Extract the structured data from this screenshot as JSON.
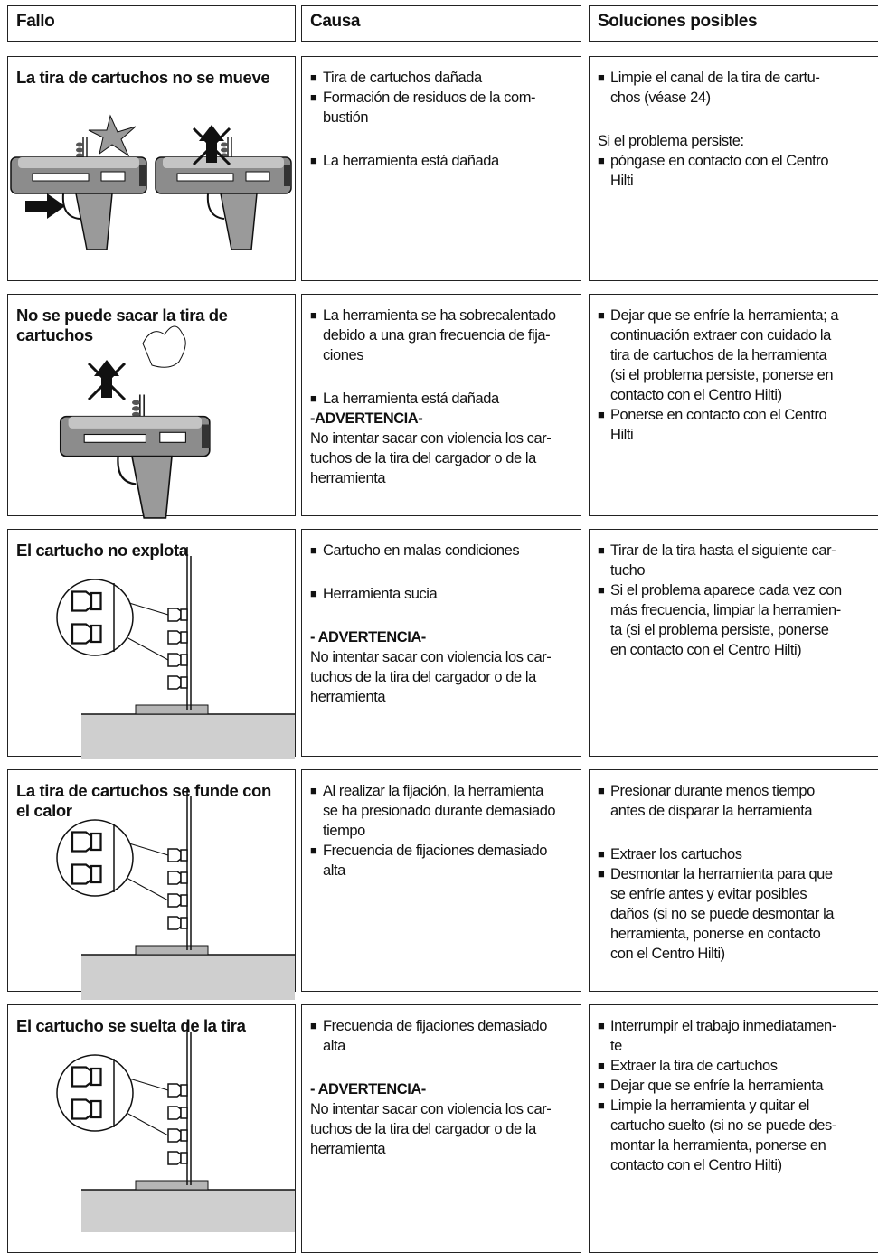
{
  "header": {
    "columns": [
      "Fallo",
      "Causa",
      "Soluciones posibles"
    ]
  },
  "rows": [
    {
      "fault": [
        "La tira de cartuchos no se mueve"
      ],
      "cause": [
        [
          {
            "marker": "■",
            "lines": [
              "Tira de cartuchos dañada"
            ]
          },
          {
            "marker": "■",
            "lines": [
              "Formación de residuos de la com-",
              "bustión"
            ]
          }
        ],
        [
          {
            "marker": "■",
            "lines": [
              "La herramienta está dañada"
            ]
          }
        ]
      ],
      "solutions": [
        [
          {
            "marker": "■",
            "lines": [
              "Limpie el canal de la tira de cartu-",
              "chos (véase 24)"
            ]
          }
        ],
        [
          {
            "lines": [
              "Si el problema persiste:"
            ]
          },
          {
            "marker": "■",
            "lines": [
              "póngase en contacto con el Centro",
              "Hilti"
            ]
          }
        ]
      ]
    },
    {
      "fault": [
        "No se puede sacar la tira de",
        "cartuchos"
      ],
      "cause": [
        [
          {
            "marker": "■",
            "lines": [
              "La herramienta se ha sobrecalentado",
              "debido a una gran frecuencia de fija-",
              "ciones"
            ]
          }
        ],
        [
          {
            "marker": "■",
            "lines": [
              "La herramienta está dañada"
            ]
          },
          {
            "heading": "-ADVERTENCIA-"
          },
          {
            "lines": [
              "No intentar sacar con violencia los car-",
              "tuchos de la tira del cargador o de la",
              "herramienta"
            ]
          }
        ]
      ],
      "solutions": [
        [
          {
            "marker": "■",
            "lines": [
              "Dejar que se enfríe la herramienta; a",
              "continuación extraer con cuidado la",
              "tira de cartuchos de la herramienta",
              "(si el problema persiste, ponerse en",
              "contacto con el Centro Hilti)"
            ]
          },
          {
            "marker": "■",
            "lines": [
              "Ponerse en contacto con el Centro",
              "Hilti"
            ]
          }
        ]
      ]
    },
    {
      "fault": [
        "El cartucho no explota"
      ],
      "cause": [
        [
          {
            "marker": "■",
            "lines": [
              "Cartucho en malas condiciones"
            ]
          }
        ],
        [
          {
            "marker": "■",
            "lines": [
              "Herramienta sucia"
            ]
          }
        ],
        [
          {
            "heading": "- ADVERTENCIA-"
          },
          {
            "lines": [
              "No intentar sacar con violencia los car-",
              "tuchos de la tira del cargador o de la",
              "herramienta"
            ]
          }
        ]
      ],
      "solutions": [
        [
          {
            "marker": "■",
            "lines": [
              "Tirar de la tira hasta el siguiente car-",
              "tucho"
            ]
          },
          {
            "marker": "■",
            "lines": [
              "Si el problema aparece cada vez con",
              "más frecuencia, limpiar la herramien-",
              "ta (si el problema persiste, ponerse",
              "en contacto con el Centro Hilti)"
            ]
          }
        ]
      ]
    },
    {
      "fault": [
        "La tira de cartuchos se funde con",
        "el calor"
      ],
      "cause": [
        [
          {
            "marker": "■",
            "lines": [
              "Al realizar la fijación, la herramienta",
              "se ha presionado durante demasiado",
              "tiempo"
            ]
          },
          {
            "marker": "■",
            "lines": [
              "Frecuencia de fijaciones demasiado",
              "alta"
            ]
          }
        ]
      ],
      "solutions": [
        [
          {
            "marker": "■",
            "lines": [
              "Presionar durante menos tiempo",
              "antes de disparar la herramienta"
            ]
          }
        ],
        [
          {
            "marker": "■",
            "lines": [
              "Extraer los cartuchos"
            ]
          },
          {
            "marker": "■",
            "lines": [
              "Desmontar la herramienta para que",
              "se enfríe antes y evitar posibles",
              "daños (si no se puede desmontar la",
              "herramienta, ponerse en contacto",
              "con el Centro Hilti)"
            ]
          }
        ]
      ]
    },
    {
      "fault": [
        "El cartucho se suelta de la tira"
      ],
      "cause": [
        [
          {
            "marker": "■",
            "lines": [
              "Frecuencia de fijaciones demasiado",
              "alta"
            ]
          }
        ],
        [
          {
            "heading": "- ADVERTENCIA-"
          },
          {
            "lines": [
              "No intentar sacar con violencia los car-",
              "tuchos de la tira del cargador o de la",
              "herramienta"
            ]
          }
        ]
      ],
      "solutions": [
        [
          {
            "marker": "■",
            "lines": [
              "Interrumpir el trabajo inmediatamen-",
              "te"
            ]
          },
          {
            "marker": "■",
            "lines": [
              "Extraer la tira de cartuchos"
            ]
          },
          {
            "marker": "■",
            "lines": [
              "Dejar que se enfríe la herramienta"
            ]
          },
          {
            "marker": "■",
            "lines": [
              "Limpie la herramienta y quitar el",
              "cartucho suelto (si no se puede des-",
              "montar la herramienta, ponerse en",
              "contacto con el Centro Hilti)"
            ]
          }
        ]
      ]
    }
  ]
}
